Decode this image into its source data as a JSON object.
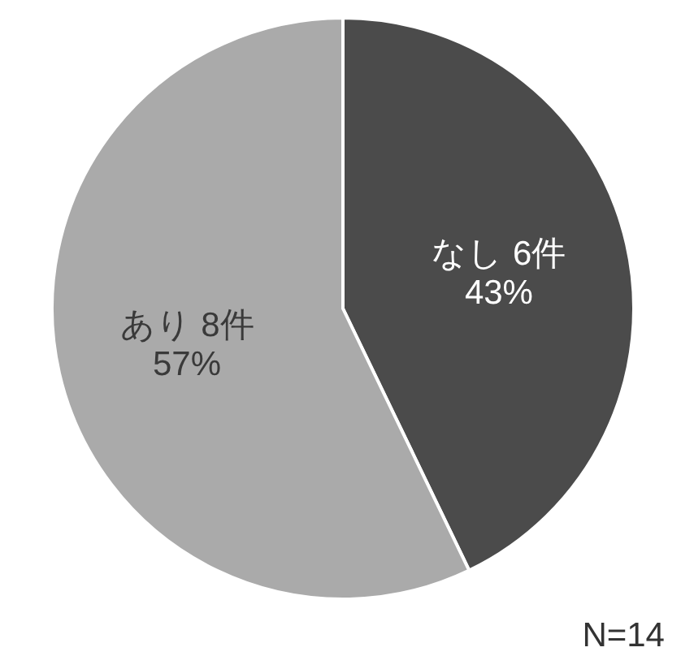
{
  "chart_data": {
    "type": "pie",
    "categories": [
      "なし",
      "あり"
    ],
    "values": [
      6,
      8
    ],
    "colors": [
      "#4b4b4b",
      "#aaaaaa"
    ],
    "value_labels": [
      "6件\n43%",
      "8件\n57%"
    ],
    "annotations": [
      "N=14"
    ]
  }
}
